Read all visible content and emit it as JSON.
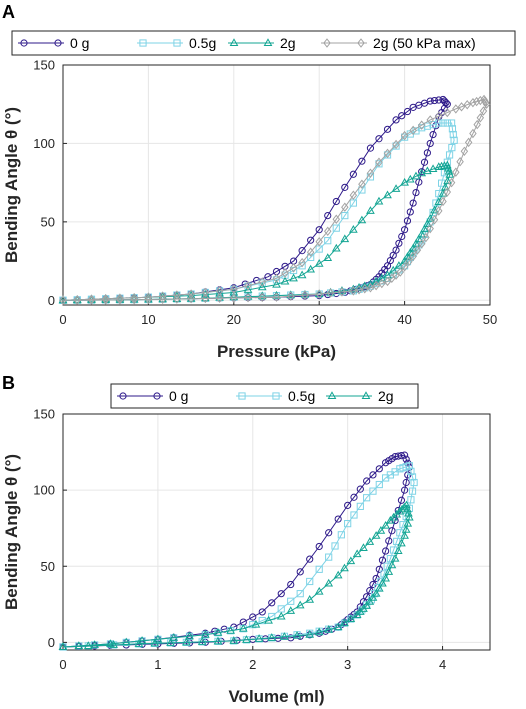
{
  "chart_data": [
    {
      "panel": "A",
      "type": "line",
      "xlabel": "Pressure (kPa)",
      "ylabel": "Bending Angle θ (°)",
      "xlim": [
        0,
        50
      ],
      "ylim": [
        -3,
        150
      ],
      "xticks": [
        "0",
        "10",
        "20",
        "30",
        "40",
        "50"
      ],
      "yticks": [
        "0",
        "50",
        "100",
        "150"
      ],
      "grid": true,
      "legend_position": "top, outside",
      "series": [
        {
          "name": "0 g",
          "color": "#2e1a8a",
          "marker": "circle",
          "x": [
            0,
            5,
            10,
            15,
            20,
            24,
            27,
            30,
            33,
            36,
            39,
            41,
            43,
            44.5,
            45,
            44,
            43,
            42,
            41,
            40,
            39,
            38,
            37,
            36,
            35,
            33,
            30,
            25,
            20,
            15,
            10,
            5,
            0
          ],
          "y": [
            0,
            1,
            2,
            4,
            8,
            15,
            25,
            45,
            72,
            97,
            115,
            123,
            127,
            128,
            125,
            117,
            100,
            82,
            62,
            45,
            32,
            22,
            15,
            10,
            8,
            5,
            3,
            2,
            1.5,
            1,
            0.5,
            0.2,
            0
          ]
        },
        {
          "name": "0.5g",
          "color": "#7ed3e6",
          "marker": "square",
          "x": [
            0,
            5,
            10,
            15,
            20,
            25,
            28,
            31,
            34,
            37,
            40,
            42,
            44,
            45.5,
            45.8,
            45,
            44,
            43,
            42,
            41,
            40,
            38,
            36,
            34,
            30,
            25,
            20,
            15,
            10,
            5,
            0
          ],
          "y": [
            0,
            1,
            2,
            4,
            7,
            13,
            22,
            38,
            62,
            87,
            104,
            110,
            113,
            113,
            102,
            88,
            68,
            50,
            38,
            30,
            22,
            14,
            9,
            6,
            4,
            3,
            2,
            1,
            0.5,
            0.2,
            0
          ]
        },
        {
          "name": "2g",
          "color": "#13a593",
          "marker": "triangle",
          "x": [
            0,
            5,
            10,
            15,
            20,
            25,
            28,
            31,
            34,
            37,
            40,
            42,
            44,
            45,
            45.3,
            44.5,
            43,
            42,
            41,
            40,
            38,
            36,
            34,
            30,
            25,
            20,
            15,
            10,
            5,
            0
          ],
          "y": [
            0,
            1,
            2,
            3,
            5,
            10,
            16,
            27,
            45,
            63,
            75,
            81,
            85,
            86,
            80,
            68,
            52,
            42,
            33,
            25,
            16,
            10,
            7,
            4,
            3,
            2,
            1,
            0.5,
            0.2,
            0
          ]
        },
        {
          "name": "2g (50 kPa max)",
          "color": "#a3a3a3",
          "marker": "diamond",
          "x": [
            0,
            5,
            10,
            15,
            20,
            25,
            28,
            31,
            34,
            37,
            40,
            43,
            46,
            48,
            49.3,
            49.6,
            48.5,
            47,
            45.5,
            44,
            42.5,
            41,
            39.5,
            38,
            36,
            34,
            30,
            25,
            20,
            15,
            10,
            5,
            0
          ],
          "y": [
            0,
            1,
            2,
            4,
            7,
            14,
            24,
            44,
            67,
            88,
            105,
            115,
            122,
            126,
            128,
            125,
            112,
            95,
            75,
            57,
            40,
            28,
            18,
            12,
            8,
            6,
            4,
            2,
            1.5,
            1,
            0.5,
            0.2,
            0
          ]
        }
      ]
    },
    {
      "panel": "B",
      "type": "line",
      "xlabel": "Volume (ml)",
      "ylabel": "Bending Angle θ (°)",
      "xlim": [
        0,
        4.5
      ],
      "ylim": [
        -5,
        150
      ],
      "xticks": [
        "0",
        "1",
        "2",
        "3",
        "4"
      ],
      "yticks": [
        "0",
        "50",
        "100",
        "150"
      ],
      "grid": true,
      "legend_position": "top, outside",
      "series": [
        {
          "name": "0 g",
          "color": "#2e1a8a",
          "marker": "circle",
          "x": [
            0,
            0.5,
            1,
            1.5,
            1.8,
            2.1,
            2.4,
            2.7,
            3.0,
            3.2,
            3.4,
            3.5,
            3.6,
            3.65,
            3.6,
            3.5,
            3.4,
            3.3,
            3.2,
            3.1,
            3.0,
            2.9,
            2.7,
            2.4,
            2.0,
            1.5,
            1.0,
            0.5,
            0
          ],
          "y": [
            -3,
            -1,
            2,
            6,
            10,
            20,
            38,
            63,
            90,
            106,
            118,
            122,
            123,
            115,
            100,
            80,
            60,
            42,
            30,
            20,
            15,
            10,
            6,
            3,
            2,
            0,
            -1,
            -2,
            -3
          ]
        },
        {
          "name": "0.5g",
          "color": "#7ed3e6",
          "marker": "square",
          "x": [
            0,
            0.5,
            1,
            1.5,
            1.9,
            2.2,
            2.5,
            2.8,
            3.0,
            3.2,
            3.4,
            3.55,
            3.65,
            3.7,
            3.65,
            3.55,
            3.45,
            3.35,
            3.25,
            3.1,
            2.9,
            2.6,
            2.2,
            1.8,
            1.3,
            0.8,
            0
          ],
          "y": [
            -3,
            -1,
            2,
            5,
            9,
            17,
            32,
            56,
            78,
            95,
            108,
            114,
            116,
            105,
            88,
            72,
            55,
            40,
            28,
            18,
            10,
            6,
            3,
            1,
            0,
            -1,
            -3
          ]
        },
        {
          "name": "2g",
          "color": "#13a593",
          "marker": "triangle",
          "x": [
            0,
            0.5,
            1,
            1.5,
            1.9,
            2.3,
            2.6,
            2.9,
            3.1,
            3.3,
            3.45,
            3.55,
            3.62,
            3.65,
            3.6,
            3.5,
            3.4,
            3.3,
            3.2,
            3.1,
            2.9,
            2.6,
            2.2,
            1.8,
            1.3,
            0.8,
            0
          ],
          "y": [
            -3,
            -1,
            2,
            5,
            9,
            17,
            28,
            44,
            58,
            70,
            80,
            86,
            90,
            82,
            70,
            55,
            42,
            32,
            24,
            18,
            10,
            5,
            3,
            1,
            0,
            -1,
            -3
          ]
        }
      ]
    }
  ]
}
